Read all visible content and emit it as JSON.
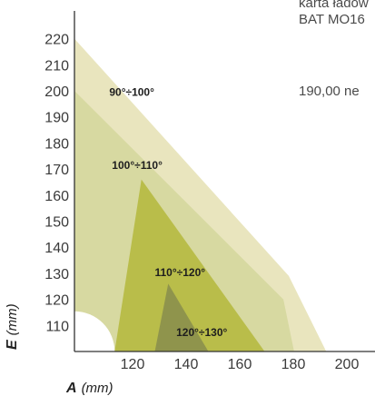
{
  "chart_data": {
    "type": "area",
    "xlabel_var": "A",
    "xlabel_unit": "(mm)",
    "ylabel_var": "E",
    "ylabel_unit": "(mm)",
    "x_ticks": [
      120,
      140,
      160,
      180,
      200
    ],
    "y_ticks": [
      110,
      120,
      130,
      140,
      150,
      160,
      170,
      180,
      190,
      200,
      210,
      220
    ],
    "xlim": [
      100,
      215
    ],
    "ylim": [
      100,
      226
    ],
    "series": [
      {
        "name": "90°÷100°",
        "color": "#e9e5be",
        "polygon": [
          [
            100,
            220
          ],
          [
            180,
            129
          ],
          [
            194,
            100
          ],
          [
            100,
            100
          ]
        ],
        "label_at": [
          113,
          198
        ]
      },
      {
        "name": "100°÷110°",
        "color": "#d7d9a1",
        "polygon": [
          [
            100,
            200
          ],
          [
            178,
            120
          ],
          [
            182,
            100
          ],
          [
            100,
            100
          ]
        ],
        "label_at": [
          114,
          170
        ]
      },
      {
        "name": "110°÷120°",
        "color": "#b9bd4a",
        "polygon": [
          [
            125,
            166
          ],
          [
            171,
            100
          ],
          [
            115,
            100
          ]
        ],
        "label_at": [
          130,
          129
        ]
      },
      {
        "name": "120°÷130°",
        "color": "#8f944c",
        "polygon": [
          [
            135,
            126
          ],
          [
            150,
            100
          ],
          [
            130,
            100
          ]
        ],
        "label_at": [
          138,
          106
        ]
      }
    ],
    "cutout": {
      "center": [
        100,
        100
      ],
      "radius_x_units": 15
    }
  },
  "notes": {
    "line1": "karta ładow",
    "line2": "BAT MO16",
    "line3": "190,00 ne"
  }
}
